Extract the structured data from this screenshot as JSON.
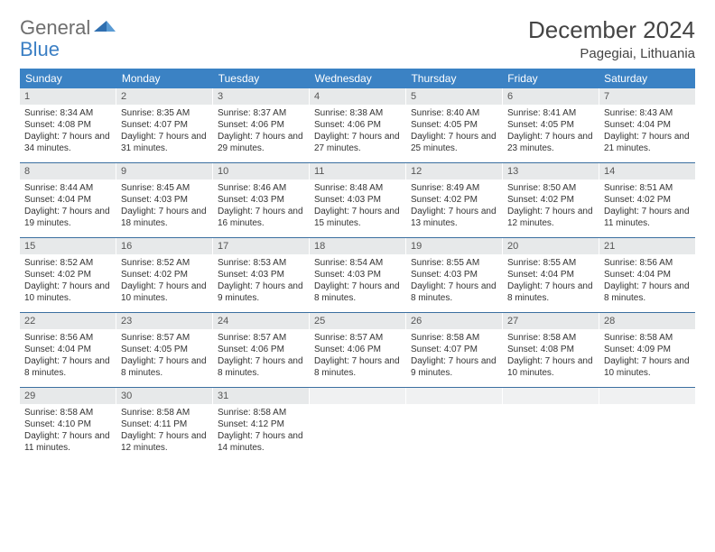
{
  "brand": {
    "part1": "General",
    "part2": "Blue"
  },
  "title": "December 2024",
  "location": "Pagegiai, Lithuania",
  "colors": {
    "header_bg": "#3b82c4",
    "header_text": "#ffffff",
    "date_bg": "#e7e9ea",
    "rule": "#3b6fa0",
    "text": "#333333",
    "brand_gray": "#6e6e6e",
    "brand_blue": "#3b7fc4"
  },
  "daynames": [
    "Sunday",
    "Monday",
    "Tuesday",
    "Wednesday",
    "Thursday",
    "Friday",
    "Saturday"
  ],
  "weeks": [
    [
      {
        "n": "1",
        "sr": "8:34 AM",
        "ss": "4:08 PM",
        "dl": "7 hours and 34 minutes."
      },
      {
        "n": "2",
        "sr": "8:35 AM",
        "ss": "4:07 PM",
        "dl": "7 hours and 31 minutes."
      },
      {
        "n": "3",
        "sr": "8:37 AM",
        "ss": "4:06 PM",
        "dl": "7 hours and 29 minutes."
      },
      {
        "n": "4",
        "sr": "8:38 AM",
        "ss": "4:06 PM",
        "dl": "7 hours and 27 minutes."
      },
      {
        "n": "5",
        "sr": "8:40 AM",
        "ss": "4:05 PM",
        "dl": "7 hours and 25 minutes."
      },
      {
        "n": "6",
        "sr": "8:41 AM",
        "ss": "4:05 PM",
        "dl": "7 hours and 23 minutes."
      },
      {
        "n": "7",
        "sr": "8:43 AM",
        "ss": "4:04 PM",
        "dl": "7 hours and 21 minutes."
      }
    ],
    [
      {
        "n": "8",
        "sr": "8:44 AM",
        "ss": "4:04 PM",
        "dl": "7 hours and 19 minutes."
      },
      {
        "n": "9",
        "sr": "8:45 AM",
        "ss": "4:03 PM",
        "dl": "7 hours and 18 minutes."
      },
      {
        "n": "10",
        "sr": "8:46 AM",
        "ss": "4:03 PM",
        "dl": "7 hours and 16 minutes."
      },
      {
        "n": "11",
        "sr": "8:48 AM",
        "ss": "4:03 PM",
        "dl": "7 hours and 15 minutes."
      },
      {
        "n": "12",
        "sr": "8:49 AM",
        "ss": "4:02 PM",
        "dl": "7 hours and 13 minutes."
      },
      {
        "n": "13",
        "sr": "8:50 AM",
        "ss": "4:02 PM",
        "dl": "7 hours and 12 minutes."
      },
      {
        "n": "14",
        "sr": "8:51 AM",
        "ss": "4:02 PM",
        "dl": "7 hours and 11 minutes."
      }
    ],
    [
      {
        "n": "15",
        "sr": "8:52 AM",
        "ss": "4:02 PM",
        "dl": "7 hours and 10 minutes."
      },
      {
        "n": "16",
        "sr": "8:52 AM",
        "ss": "4:02 PM",
        "dl": "7 hours and 10 minutes."
      },
      {
        "n": "17",
        "sr": "8:53 AM",
        "ss": "4:03 PM",
        "dl": "7 hours and 9 minutes."
      },
      {
        "n": "18",
        "sr": "8:54 AM",
        "ss": "4:03 PM",
        "dl": "7 hours and 8 minutes."
      },
      {
        "n": "19",
        "sr": "8:55 AM",
        "ss": "4:03 PM",
        "dl": "7 hours and 8 minutes."
      },
      {
        "n": "20",
        "sr": "8:55 AM",
        "ss": "4:04 PM",
        "dl": "7 hours and 8 minutes."
      },
      {
        "n": "21",
        "sr": "8:56 AM",
        "ss": "4:04 PM",
        "dl": "7 hours and 8 minutes."
      }
    ],
    [
      {
        "n": "22",
        "sr": "8:56 AM",
        "ss": "4:04 PM",
        "dl": "7 hours and 8 minutes."
      },
      {
        "n": "23",
        "sr": "8:57 AM",
        "ss": "4:05 PM",
        "dl": "7 hours and 8 minutes."
      },
      {
        "n": "24",
        "sr": "8:57 AM",
        "ss": "4:06 PM",
        "dl": "7 hours and 8 minutes."
      },
      {
        "n": "25",
        "sr": "8:57 AM",
        "ss": "4:06 PM",
        "dl": "7 hours and 8 minutes."
      },
      {
        "n": "26",
        "sr": "8:58 AM",
        "ss": "4:07 PM",
        "dl": "7 hours and 9 minutes."
      },
      {
        "n": "27",
        "sr": "8:58 AM",
        "ss": "4:08 PM",
        "dl": "7 hours and 10 minutes."
      },
      {
        "n": "28",
        "sr": "8:58 AM",
        "ss": "4:09 PM",
        "dl": "7 hours and 10 minutes."
      }
    ],
    [
      {
        "n": "29",
        "sr": "8:58 AM",
        "ss": "4:10 PM",
        "dl": "7 hours and 11 minutes."
      },
      {
        "n": "30",
        "sr": "8:58 AM",
        "ss": "4:11 PM",
        "dl": "7 hours and 12 minutes."
      },
      {
        "n": "31",
        "sr": "8:58 AM",
        "ss": "4:12 PM",
        "dl": "7 hours and 14 minutes."
      },
      {
        "empty": true
      },
      {
        "empty": true
      },
      {
        "empty": true
      },
      {
        "empty": true
      }
    ]
  ],
  "labels": {
    "sunrise": "Sunrise:",
    "sunset": "Sunset:",
    "daylight": "Daylight:"
  }
}
